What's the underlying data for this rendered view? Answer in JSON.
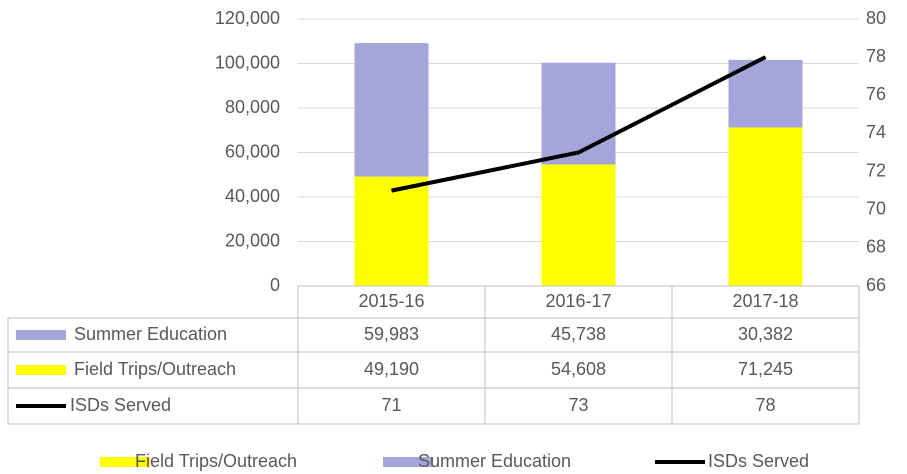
{
  "chart_data": {
    "type": "bar",
    "categories": [
      "2015-16",
      "2016-17",
      "2017-18"
    ],
    "series": [
      {
        "name": "Field Trips/Outreach",
        "color": "#ffff00",
        "values": [
          49190,
          54608,
          71245
        ],
        "value_labels": [
          "49,190",
          "54,608",
          "71,245"
        ]
      },
      {
        "name": "Summer Education",
        "color": "#a5a5dc",
        "values": [
          59983,
          45738,
          30382
        ],
        "value_labels": [
          "59,983",
          "45,738",
          "30,382"
        ]
      },
      {
        "name": "ISDs Served",
        "type": "line",
        "axis": "y2",
        "color": "#000000",
        "values": [
          71,
          73,
          78
        ]
      }
    ],
    "stacked": true,
    "ylim": [
      0,
      120000
    ],
    "yticks": [
      0,
      {
        "value": 20000,
        "label": "20,000"
      },
      {
        "value": 40000,
        "label": "40,000"
      },
      {
        "value": 60000,
        "label": "60,000"
      },
      {
        "value": 80000,
        "label": "80,000"
      },
      {
        "value": 100000,
        "label": "100,000"
      },
      {
        "value": 120000,
        "label": "120,000"
      }
    ],
    "y2lim": [
      66,
      80
    ],
    "y2ticks": [
      66,
      68,
      70,
      72,
      74,
      76,
      78,
      80
    ],
    "grid": true,
    "legend": "bottom"
  }
}
